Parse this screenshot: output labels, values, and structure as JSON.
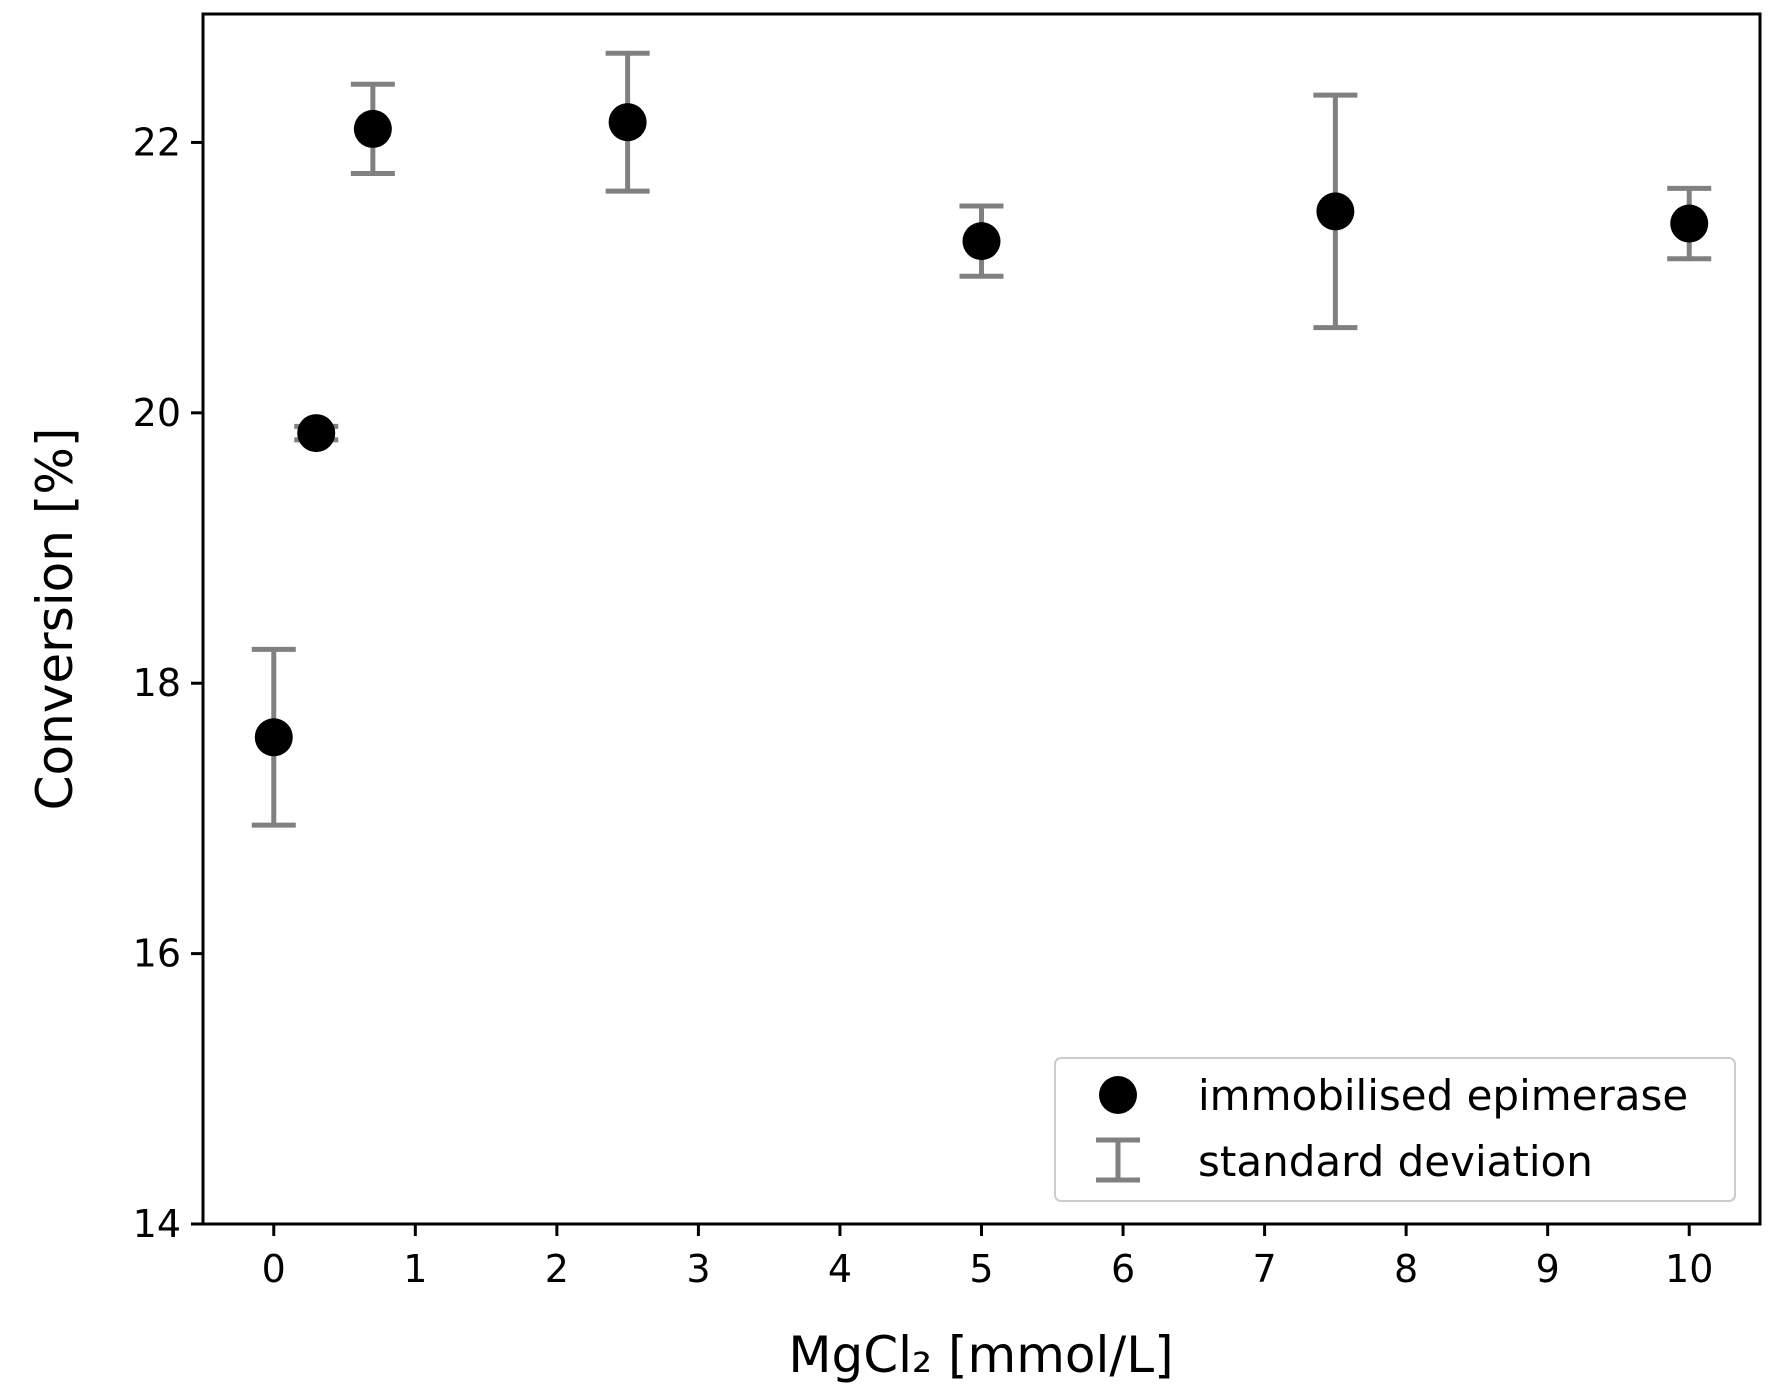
{
  "chart_data": {
    "type": "scatter",
    "title": "",
    "xlabel": "MgCl₂ [mmol/L]",
    "ylabel": "Conversion [%]",
    "xlim": [
      -0.5,
      10.5
    ],
    "ylim": [
      14,
      22.95
    ],
    "x_ticks": [
      0,
      1,
      2,
      3,
      4,
      5,
      6,
      7,
      8,
      9,
      10
    ],
    "y_ticks": [
      14,
      16,
      18,
      20,
      22
    ],
    "x_tick_labels": [
      "0",
      "1",
      "2",
      "3",
      "4",
      "5",
      "6",
      "7",
      "8",
      "9",
      "10"
    ],
    "y_tick_labels": [
      "14",
      "16",
      "18",
      "20",
      "22"
    ],
    "grid": false,
    "legend_position": "lower-right",
    "legend": [
      "immobilised epimerase",
      "standard deviation"
    ],
    "marker_color": "#000000",
    "errorbar_color": "#808080",
    "series": [
      {
        "name": "immobilised epimerase",
        "x": [
          0,
          0.3,
          0.7,
          2.5,
          5,
          7.5,
          10
        ],
        "y": [
          17.6,
          19.85,
          22.1,
          22.15,
          21.27,
          21.49,
          21.4
        ],
        "error": [
          0.65,
          0.05,
          0.33,
          0.51,
          0.26,
          0.86,
          0.26
        ]
      }
    ]
  }
}
